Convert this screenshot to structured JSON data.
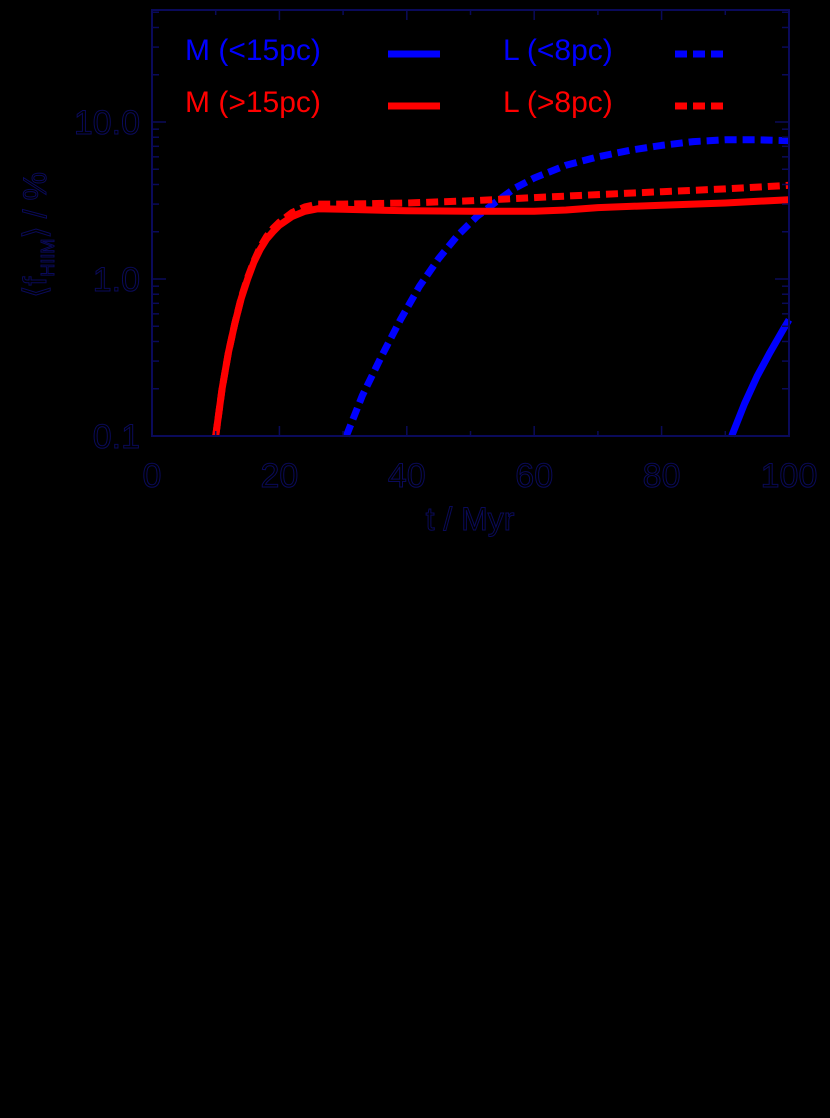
{
  "colors": {
    "background": "#000000",
    "axis": "#0a0a5a",
    "blue": "#0000ff",
    "red": "#ff0000"
  },
  "chart_data": {
    "type": "line",
    "title": "",
    "xlabel": "t / Myr",
    "ylabel": "⟨f_HIIM⟩ / %",
    "ylabel_parts": {
      "open": "⟨",
      "f": "f",
      "sub": "HIIM",
      "close": "⟩",
      "unit": "/ %"
    },
    "xlim": [
      0,
      100
    ],
    "ylim": [
      0.1,
      51
    ],
    "yscale": "log",
    "xticks": [
      0,
      20,
      40,
      60,
      80,
      100
    ],
    "xtick_labels": [
      "0",
      "20",
      "40",
      "60",
      "80",
      "100"
    ],
    "yticks": [
      0.1,
      1.0,
      10.0
    ],
    "ytick_labels": [
      "0.1",
      "1.0",
      "10.0"
    ],
    "grid": false,
    "legend_position": "upper (inside, two columns)",
    "legend": [
      {
        "label": "M (<15pc)",
        "color": "#0000ff",
        "linestyle": "solid"
      },
      {
        "label": "L (<8pc)",
        "color": "#0000ff",
        "linestyle": "dashed"
      },
      {
        "label": "M (>15pc)",
        "color": "#ff0000",
        "linestyle": "solid"
      },
      {
        "label": "L (>8pc)",
        "color": "#ff0000",
        "linestyle": "dashed"
      }
    ],
    "series": [
      {
        "name": "M (<15pc)",
        "color": "#0000ff",
        "linestyle": "solid",
        "x": [
          91,
          93,
          95,
          97,
          99,
          100
        ],
        "y": [
          0.1,
          0.16,
          0.24,
          0.34,
          0.47,
          0.55
        ]
      },
      {
        "name": "L (<8pc)",
        "color": "#0000ff",
        "linestyle": "dashed",
        "x": [
          30.5,
          33,
          36,
          39,
          42,
          45,
          48,
          51,
          54,
          57,
          60,
          65,
          70,
          75,
          80,
          85,
          90,
          95,
          100
        ],
        "y": [
          0.1,
          0.18,
          0.32,
          0.55,
          0.9,
          1.35,
          1.9,
          2.5,
          3.1,
          3.8,
          4.4,
          5.3,
          6.0,
          6.6,
          7.1,
          7.5,
          7.7,
          7.7,
          7.6
        ]
      },
      {
        "name": "M (>15pc)",
        "color": "#ff0000",
        "linestyle": "solid",
        "x": [
          10,
          11,
          12,
          13,
          14,
          15,
          16,
          17,
          18,
          19,
          20,
          22,
          24,
          26,
          30,
          40,
          50,
          60,
          65,
          70,
          80,
          90,
          100
        ],
        "y": [
          0.1,
          0.2,
          0.34,
          0.52,
          0.75,
          1.0,
          1.28,
          1.55,
          1.8,
          2.0,
          2.2,
          2.5,
          2.7,
          2.8,
          2.78,
          2.72,
          2.7,
          2.7,
          2.75,
          2.85,
          2.95,
          3.05,
          3.2
        ]
      },
      {
        "name": "L (>8pc)",
        "color": "#ff0000",
        "linestyle": "dashed",
        "x": [
          10,
          11,
          12,
          13,
          14,
          15,
          16,
          17,
          18,
          19,
          20,
          22,
          24,
          26,
          30,
          40,
          50,
          60,
          70,
          80,
          90,
          100
        ],
        "y": [
          0.1,
          0.2,
          0.34,
          0.52,
          0.76,
          1.02,
          1.3,
          1.6,
          1.87,
          2.1,
          2.3,
          2.65,
          2.88,
          3.0,
          3.0,
          3.05,
          3.15,
          3.3,
          3.45,
          3.6,
          3.75,
          3.95
        ]
      }
    ]
  }
}
